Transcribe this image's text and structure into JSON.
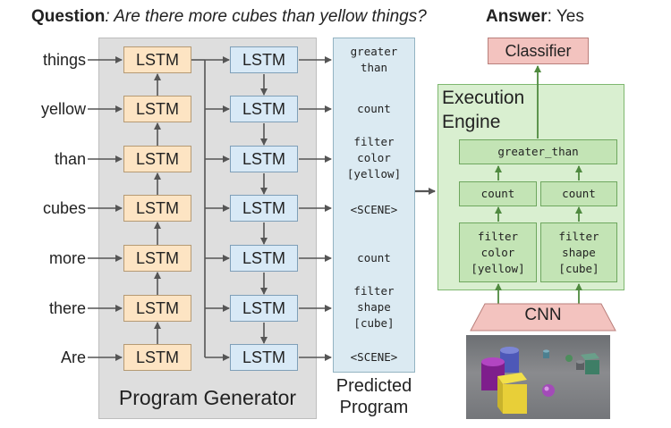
{
  "header": {
    "question_label": "Question",
    "question_text": ": Are there more cubes than yellow things?",
    "answer_label": "Answer",
    "answer_text": ": Yes"
  },
  "program_generator": {
    "label": "Program Generator",
    "words": [
      "things",
      "yellow",
      "than",
      "cubes",
      "more",
      "there",
      "Are"
    ],
    "encoder_lstm_label": "LSTM",
    "decoder_lstm_label": "LSTM"
  },
  "predicted_program": {
    "label": "Predicted\nProgram",
    "tokens": [
      "greater\nthan",
      "count",
      "filter\ncolor\n[yellow]",
      "<SCENE>",
      "count",
      "filter\nshape\n[cube]",
      "<SCENE>"
    ]
  },
  "execution_engine": {
    "title": "Execution\nEngine",
    "classifier_label": "Classifier",
    "greater_than": "greater_than",
    "count_left": "count",
    "count_right": "count",
    "filter_left": "filter\ncolor\n[yellow]",
    "filter_right": "filter\nshape\n[cube]",
    "cnn_label": "CNN"
  },
  "colors": {
    "encoder_fill": "#fde4c3",
    "decoder_fill": "#d8e9f6",
    "program_fill": "#dbeaf2",
    "engine_fill": "#d9efd0",
    "module_fill": "#c3e4b5",
    "classifier_fill": "#f3c3bf",
    "cnn_fill": "#f3c3bf",
    "arrow": "#555555",
    "engine_arrow": "#4f8a3f"
  }
}
